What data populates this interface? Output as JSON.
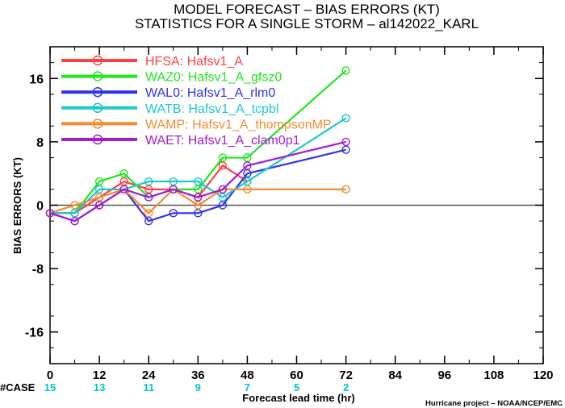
{
  "chart_data": {
    "type": "line",
    "title": "MODEL FORECAST – BIAS ERRORS (KT)",
    "subtitle": "STATISTICS FOR A SINGLE STORM – al142022_KARL",
    "xlabel": "Forecast lead time (hr)",
    "ylabel": "BIAS ERRORS (KT)",
    "credit": "Hurricane project – NOAA/NCEP/EMC",
    "xlim": [
      0,
      120
    ],
    "ylim": [
      -20,
      20
    ],
    "xticks": [
      0,
      12,
      24,
      36,
      48,
      60,
      72,
      84,
      96,
      108,
      120
    ],
    "yticks": [
      -16,
      -8,
      0,
      8,
      16
    ],
    "zero_line": true,
    "legend_position": "top-left",
    "case_label": "#CASE",
    "case_color": "#00c8c8",
    "cases": [
      {
        "x": 0,
        "n": "15"
      },
      {
        "x": 12,
        "n": "13"
      },
      {
        "x": 24,
        "n": "11"
      },
      {
        "x": 36,
        "n": "9"
      },
      {
        "x": 48,
        "n": "7"
      },
      {
        "x": 60,
        "n": "5"
      },
      {
        "x": 72,
        "n": "2"
      }
    ],
    "series": [
      {
        "name": "HFSA:",
        "label": "Hafsv1_A",
        "color": "#ff4040",
        "x": [
          0,
          6,
          12,
          18,
          24,
          30,
          36,
          42,
          48
        ],
        "y": [
          -1,
          -1,
          1,
          3,
          2,
          2,
          1,
          5,
          3
        ]
      },
      {
        "name": "WAZ0:",
        "label": "Hafsv1_A_gfsz0",
        "color": "#1ee61e",
        "x": [
          0,
          6,
          12,
          18,
          24,
          30,
          36,
          42,
          48,
          72
        ],
        "y": [
          -1,
          -1,
          3,
          4,
          1,
          2,
          2,
          6,
          6,
          17
        ]
      },
      {
        "name": "WAL0:",
        "label": "Hafsv1_A_rlm0",
        "color": "#3232e6",
        "x": [
          0,
          6,
          12,
          18,
          24,
          30,
          36,
          42,
          48,
          72
        ],
        "y": [
          -1,
          -2,
          0,
          2,
          -2,
          -1,
          -1,
          0,
          4,
          7
        ]
      },
      {
        "name": "WATB:",
        "label": "Hafsv1_A_tcpbl",
        "color": "#1ec8c8",
        "x": [
          0,
          6,
          12,
          18,
          24,
          30,
          36,
          42,
          48,
          72
        ],
        "y": [
          -1,
          -1,
          2,
          2,
          3,
          3,
          3,
          1,
          3,
          11
        ]
      },
      {
        "name": "WAMP:",
        "label": "Hafsv1_A_thompsonMP",
        "color": "#f08c32",
        "x": [
          0,
          6,
          12,
          18,
          24,
          30,
          36,
          42,
          48,
          72
        ],
        "y": [
          -1,
          0,
          1,
          2,
          -1,
          2,
          0,
          2,
          2,
          2
        ]
      },
      {
        "name": "WAET:",
        "label": "Hafsv1_A_clam0p1",
        "color": "#a01ed2",
        "x": [
          0,
          6,
          12,
          18,
          24,
          30,
          36,
          42,
          48,
          72
        ],
        "y": [
          -1,
          -2,
          0,
          2,
          1,
          2,
          1,
          2,
          5,
          8
        ]
      }
    ]
  }
}
